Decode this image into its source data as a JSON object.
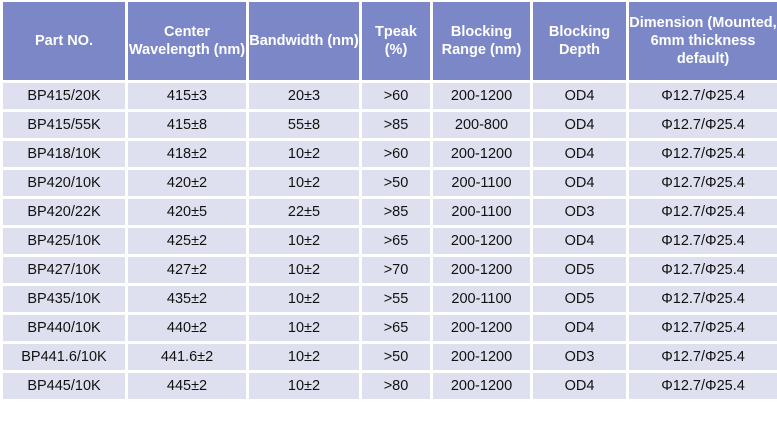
{
  "colors": {
    "header": "#7b87c7",
    "row": "#dfe0ef"
  },
  "headers": [
    "Part NO.",
    "Center Wavelength (nm)",
    "Bandwidth (nm)",
    "Tpeak (%)",
    "Blocking Range (nm)",
    "Blocking Depth",
    "Dimension (Mounted, 6mm thickness default)"
  ],
  "rows": [
    [
      "BP415/20K",
      "415±3",
      "20±3",
      ">60",
      "200-1200",
      "OD4",
      "Φ12.7/Φ25.4"
    ],
    [
      "BP415/55K",
      "415±8",
      "55±8",
      ">85",
      "200-800",
      "OD4",
      "Φ12.7/Φ25.4"
    ],
    [
      "BP418/10K",
      "418±2",
      "10±2",
      ">60",
      "200-1200",
      "OD4",
      "Φ12.7/Φ25.4"
    ],
    [
      "BP420/10K",
      "420±2",
      "10±2",
      ">50",
      "200-1100",
      "OD4",
      "Φ12.7/Φ25.4"
    ],
    [
      "BP420/22K",
      "420±5",
      "22±5",
      ">85",
      "200-1100",
      "OD3",
      "Φ12.7/Φ25.4"
    ],
    [
      "BP425/10K",
      "425±2",
      "10±2",
      ">65",
      "200-1200",
      "OD4",
      "Φ12.7/Φ25.4"
    ],
    [
      "BP427/10K",
      "427±2",
      "10±2",
      ">70",
      "200-1200",
      "OD5",
      "Φ12.7/Φ25.4"
    ],
    [
      "BP435/10K",
      "435±2",
      "10±2",
      ">55",
      "200-1100",
      "OD5",
      "Φ12.7/Φ25.4"
    ],
    [
      "BP440/10K",
      "440±2",
      "10±2",
      ">65",
      "200-1200",
      "OD4",
      "Φ12.7/Φ25.4"
    ],
    [
      "BP441.6/10K",
      "441.6±2",
      "10±2",
      ">50",
      "200-1200",
      "OD3",
      "Φ12.7/Φ25.4"
    ],
    [
      "BP445/10K",
      "445±2",
      "10±2",
      ">80",
      "200-1200",
      "OD4",
      "Φ12.7/Φ25.4"
    ]
  ]
}
